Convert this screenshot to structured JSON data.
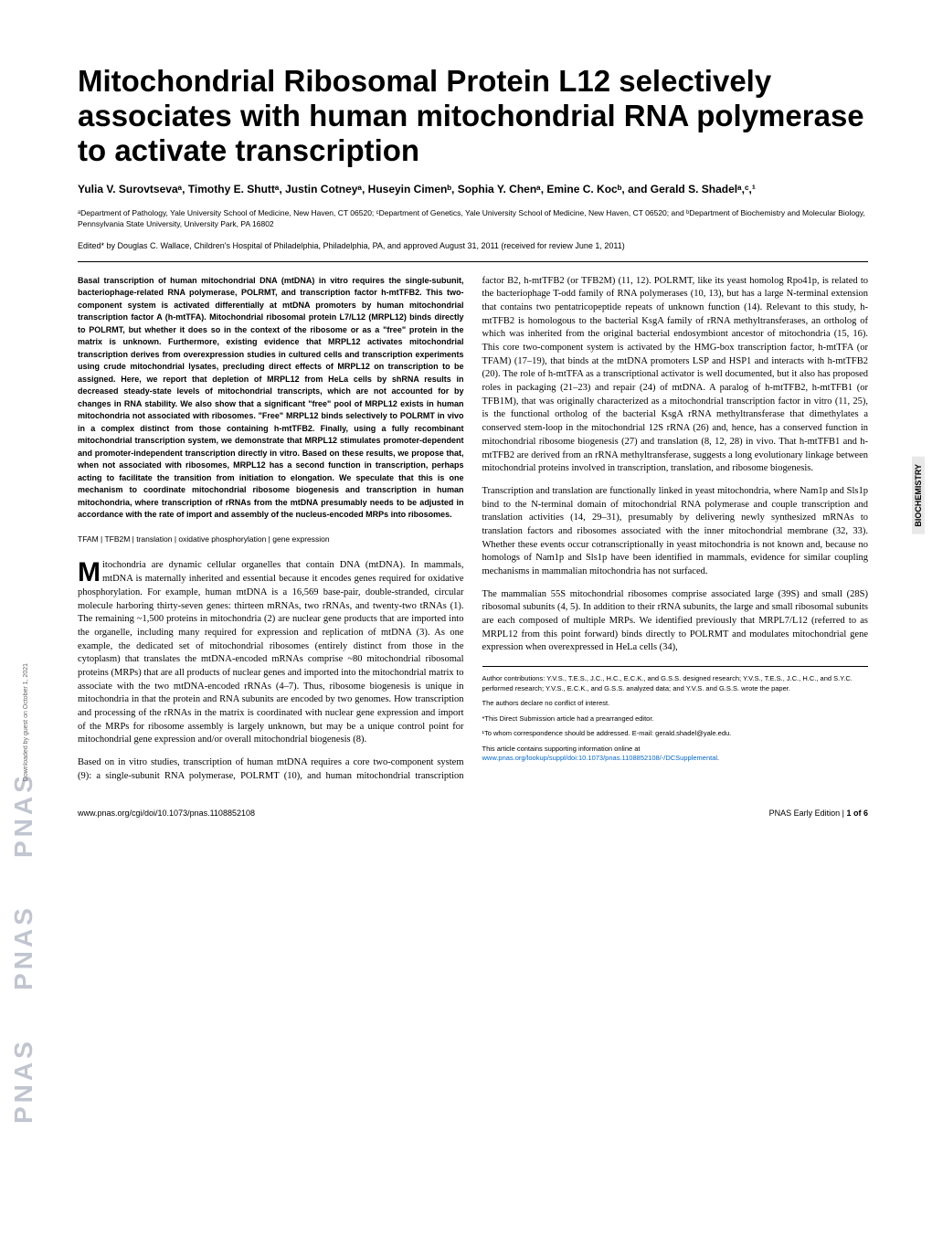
{
  "watermark": {
    "text": "PNAS",
    "repeat": 3,
    "color": "#c0c5d0"
  },
  "sidebar_label": "BIOCHEMISTRY",
  "download_note": "Downloaded by guest on October 1, 2021",
  "title": "Mitochondrial Ribosomal Protein L12 selectively associates with human mitochondrial RNA polymerase to activate transcription",
  "authors": "Yulia V. Surovtsevaᵃ, Timothy E. Shuttᵃ, Justin Cotneyᵃ, Huseyin Cimenᵇ, Sophia Y. Chenᵃ, Emine C. Kocᵇ, and Gerald S. Shadelᵃ,ᶜ,¹",
  "affiliations": "ᵃDepartment of Pathology, Yale University School of Medicine, New Haven, CT 06520; ᶜDepartment of Genetics, Yale University School of Medicine, New Haven, CT 06520; and ᵇDepartment of Biochemistry and Molecular Biology, Pennsylvania State University, University Park, PA 16802",
  "edited_by": "Edited* by Douglas C. Wallace, Children's Hospital of Philadelphia, Philadelphia, PA, and approved August 31, 2011 (received for review June 1, 2011)",
  "abstract": "Basal transcription of human mitochondrial DNA (mtDNA) in vitro requires the single-subunit, bacteriophage-related RNA polymerase, POLRMT, and transcription factor h-mtTFB2. This two-component system is activated differentially at mtDNA promoters by human mitochondrial transcription factor A (h-mtTFA). Mitochondrial ribosomal protein L7/L12 (MRPL12) binds directly to POLRMT, but whether it does so in the context of the ribosome or as a \"free\" protein in the matrix is unknown. Furthermore, existing evidence that MRPL12 activates mitochondrial transcription derives from overexpression studies in cultured cells and transcription experiments using crude mitochondrial lysates, precluding direct effects of MRPL12 on transcription to be assigned. Here, we report that depletion of MRPL12 from HeLa cells by shRNA results in decreased steady-state levels of mitochondrial transcripts, which are not accounted for by changes in RNA stability. We also show that a significant \"free\" pool of MRPL12 exists in human mitochondria not associated with ribosomes. \"Free\" MRPL12 binds selectively to POLRMT in vivo in a complex distinct from those containing h-mtTFB2. Finally, using a fully recombinant mitochondrial transcription system, we demonstrate that MRPL12 stimulates promoter-dependent and promoter-independent transcription directly in vitro. Based on these results, we propose that, when not associated with ribosomes, MRPL12 has a second function in transcription, perhaps acting to facilitate the transition from initiation to elongation. We speculate that this is one mechanism to coordinate mitochondrial ribosome biogenesis and transcription in human mitochondria, where transcription of rRNAs from the mtDNA presumably needs to be adjusted in accordance with the rate of import and assembly of the nucleus-encoded MRPs into ribosomes.",
  "keywords": "TFAM | TFB2M | translation | oxidative phosphorylation | gene expression",
  "body_para_1_first": "M",
  "body_para_1": "itochondria are dynamic cellular organelles that contain DNA (mtDNA). In mammals, mtDNA is maternally inherited and essential because it encodes genes required for oxidative phosphorylation. For example, human mtDNA is a 16,569 base-pair, double-stranded, circular molecule harboring thirty-seven genes: thirteen mRNAs, two rRNAs, and twenty-two tRNAs (1). The remaining ~1,500 proteins in mitochondria (2) are nuclear gene products that are imported into the organelle, including many required for expression and replication of mtDNA (3). As one example, the dedicated set of mitochondrial ribosomes (entirely distinct from those in the cytoplasm) that translates the mtDNA-encoded mRNAs comprise ~80 mitochondrial ribosomal proteins (MRPs) that are all products of nuclear genes and imported into the mitochondrial matrix to associate with the two mtDNA-encoded rRNAs (4–7). Thus, ribosome biogenesis is unique in mitochondria in that the protein and RNA subunits are encoded by two genomes. How transcription and processing of the rRNAs in the matrix is coordinated with nuclear gene expression and import of the MRPs for ribosome assembly is largely unknown, but may be a unique control point for mitochondrial gene expression and/or overall mitochondrial biogenesis (8).",
  "body_para_2": "Based on in vitro studies, transcription of human mtDNA requires a core two-component system (9): a single-subunit RNA polymerase, POLRMT (10), and human mitochondrial transcription factor B2, h-mtTFB2 (or TFB2M) (11, 12). POLRMT, like its yeast homolog Rpo41p, is related to the bacteriophage T-odd family of RNA polymerases (10, 13), but has a large N-terminal extension that contains two pentatricopeptide repeats of unknown function (14). Relevant to this study, h-mtTFB2 is homologous to the bacterial KsgA family of rRNA methyltransferases, an ortholog of which was inherited from the original bacterial endosymbiont ancestor of mitochondria (15, 16). This core two-component system is activated by the HMG-box transcription factor, h-mtTFA (or TFAM) (17–19), that binds at the mtDNA promoters LSP and HSP1 and interacts with h-mtTFB2 (20). The role of h-mtTFA as a transcriptional activator is well documented, but it also has proposed roles in packaging (21–23) and repair (24) of mtDNA. A paralog of h-mtTFB2, h-mtTFB1 (or TFB1M), that was originally characterized as a mitochondrial transcription factor in vitro (11, 25), is the functional ortholog of the bacterial KsgA rRNA methyltransferase that dimethylates a conserved stem-loop in the mitochondrial 12S rRNA (26) and, hence, has a conserved function in mitochondrial ribosome biogenesis (27) and translation (8, 12, 28) in vivo. That h-mtTFB1 and h-mtTFB2 are derived from an rRNA methyltransferase, suggests a long evolutionary linkage between mitochondrial proteins involved in transcription, translation, and ribosome biogenesis.",
  "body_para_3": "Transcription and translation are functionally linked in yeast mitochondria, where Nam1p and Sls1p bind to the N-terminal domain of mitochondrial RNA polymerase and couple transcription and translation activities (14, 29–31), presumably by delivering newly synthesized mRNAs to translation factors and ribosomes associated with the inner mitochondrial membrane (32, 33). Whether these events occur cotranscriptionally in yeast mitochondria is not known and, because no homologs of Nam1p and Sls1p have been identified in mammals, evidence for similar coupling mechanisms in mammalian mitochondria has not surfaced.",
  "body_para_4": "The mammalian 55S mitochondrial ribosomes comprise associated large (39S) and small (28S) ribosomal subunits (4, 5). In addition to their rRNA subunits, the large and small ribosomal subunits are each composed of multiple MRPs. We identified previously that MRPL7/L12 (referred to as MRPL12 from this point forward) binds directly to POLRMT and modulates mitochondrial gene expression when overexpressed in HeLa cells (34),",
  "contrib": {
    "author_contributions": "Author contributions: Y.V.S., T.E.S., J.C., H.C., E.C.K., and G.S.S. designed research; Y.V.S., T.E.S., J.C., H.C., and S.Y.C. performed research; Y.V.S., E.C.K., and G.S.S. analyzed data; and Y.V.S. and G.S.S. wrote the paper.",
    "conflict": "The authors declare no conflict of interest.",
    "direct_submission": "*This Direct Submission article had a prearranged editor.",
    "correspondence": "¹To whom correspondence should be addressed. E-mail: gerald.shadel@yale.edu.",
    "supporting_info": "This article contains supporting information online at ",
    "supporting_link": "www.pnas.org/lookup/suppl/doi:10.1073/pnas.1108852108/-/DCSupplemental",
    "supporting_period": "."
  },
  "footer": {
    "left": "www.pnas.org/cgi/doi/10.1073/pnas.1108852108",
    "right_prefix": "PNAS Early Edition | ",
    "right_page": "1 of 6"
  },
  "colors": {
    "text": "#000000",
    "link": "#0066cc",
    "watermark": "#c0c5d0",
    "background": "#ffffff",
    "side_bg": "#e8e8e8"
  },
  "typography": {
    "title_fontsize": 33,
    "authors_fontsize": 12,
    "affiliations_fontsize": 8.5,
    "abstract_fontsize": 9,
    "body_fontsize": 10.5,
    "contrib_fontsize": 7.5,
    "footer_fontsize": 9
  }
}
